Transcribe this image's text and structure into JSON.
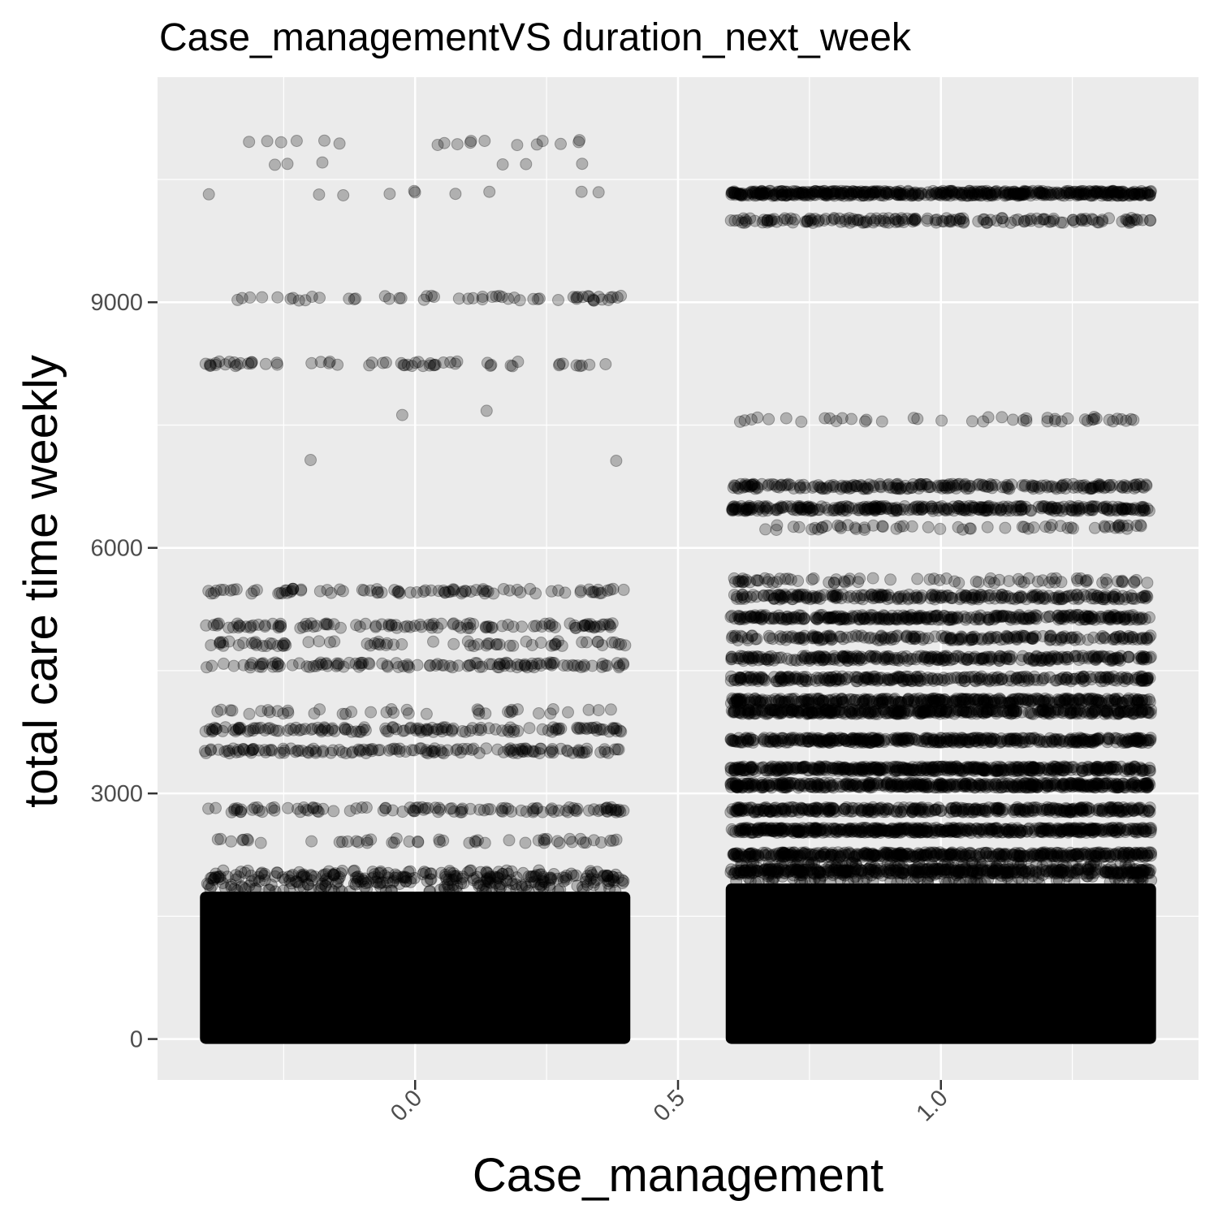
{
  "chart_data": {
    "type": "scatter",
    "title": "Case_managementVS duration_next_week",
    "xlabel": "Case_management",
    "ylabel": "total care time weekly",
    "xlim": [
      -0.49,
      1.49
    ],
    "ylim": [
      -500,
      11750
    ],
    "x_ticks": [
      0.0,
      0.5,
      1.0
    ],
    "x_tick_labels": [
      "0.0",
      "0.5",
      "1.0"
    ],
    "y_ticks": [
      0,
      3000,
      6000,
      9000
    ],
    "y_tick_labels": [
      "0",
      "3000",
      "6000",
      "9000"
    ],
    "x_tick_label_rotation_deg": -45,
    "grid": true,
    "panel_background": "#ebebeb",
    "grid_color": "#ffffff",
    "point_color": "#000000",
    "point_alpha": 0.25,
    "jitter_width": 0.4,
    "series": [
      {
        "x_group": 0,
        "dense_range": [
          0,
          1800
        ],
        "bands": [
          {
            "y": 10950,
            "count": 18
          },
          {
            "y": 10700,
            "count": 6
          },
          {
            "y": 10330,
            "count": 10
          },
          {
            "y": 9050,
            "count": 55
          },
          {
            "y": 8250,
            "count": 60
          },
          {
            "y": 7650,
            "count": 2
          },
          {
            "y": 7070,
            "count": 2
          },
          {
            "y": 5470,
            "count": 90
          },
          {
            "y": 5050,
            "count": 110
          },
          {
            "y": 4830,
            "count": 70
          },
          {
            "y": 4570,
            "count": 120
          },
          {
            "y": 4000,
            "count": 40
          },
          {
            "y": 3780,
            "count": 140
          },
          {
            "y": 3520,
            "count": 140
          },
          {
            "y": 2800,
            "count": 110
          },
          {
            "y": 2420,
            "count": 50
          },
          {
            "y": 1970,
            "count": 80
          }
        ]
      },
      {
        "x_group": 1,
        "dense_range": [
          0,
          1900
        ],
        "bands": [
          {
            "y": 10330,
            "count": 500
          },
          {
            "y": 10000,
            "count": 160
          },
          {
            "y": 7570,
            "count": 45
          },
          {
            "y": 6750,
            "count": 220
          },
          {
            "y": 6480,
            "count": 320
          },
          {
            "y": 6250,
            "count": 60
          },
          {
            "y": 5600,
            "count": 80
          },
          {
            "y": 5400,
            "count": 240
          },
          {
            "y": 5150,
            "count": 320
          },
          {
            "y": 4900,
            "count": 200
          },
          {
            "y": 4650,
            "count": 280
          },
          {
            "y": 4400,
            "count": 280
          },
          {
            "y": 4130,
            "count": 380
          },
          {
            "y": 4000,
            "count": 420
          },
          {
            "y": 3650,
            "count": 420
          },
          {
            "y": 3300,
            "count": 480
          },
          {
            "y": 3100,
            "count": 480
          },
          {
            "y": 2800,
            "count": 380
          },
          {
            "y": 2550,
            "count": 520
          },
          {
            "y": 2250,
            "count": 440
          },
          {
            "y": 2050,
            "count": 380
          }
        ]
      }
    ]
  }
}
